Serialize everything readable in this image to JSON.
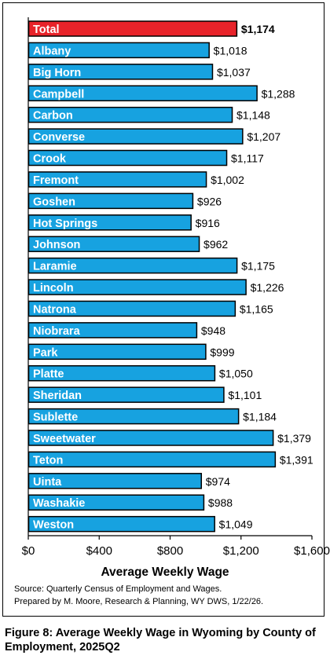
{
  "chart_data": {
    "type": "bar",
    "orientation": "horizontal",
    "categories": [
      "Total",
      "Albany",
      "Big Horn",
      "Campbell",
      "Carbon",
      "Converse",
      "Crook",
      "Fremont",
      "Goshen",
      "Hot Springs",
      "Johnson",
      "Laramie",
      "Lincoln",
      "Natrona",
      "Niobrara",
      "Park",
      "Platte",
      "Sheridan",
      "Sublette",
      "Sweetwater",
      "Teton",
      "Uinta",
      "Washakie",
      "Weston"
    ],
    "values": [
      1174,
      1018,
      1037,
      1288,
      1148,
      1207,
      1117,
      1002,
      926,
      916,
      962,
      1175,
      1226,
      1165,
      948,
      999,
      1050,
      1101,
      1184,
      1379,
      1391,
      974,
      988,
      1049
    ],
    "value_labels": [
      "$1,174",
      "$1,018",
      "$1,037",
      "$1,288",
      "$1,148",
      "$1,207",
      "$1,117",
      "$1,002",
      "$926",
      "$916",
      "$962",
      "$1,175",
      "$1,226",
      "$1,165",
      "$948",
      "$999",
      "$1,050",
      "$1,101",
      "$1,184",
      "$1,379",
      "$1,391",
      "$974",
      "$988",
      "$1,049"
    ],
    "xlabel": "Average Weekly Wage",
    "xlim": [
      0,
      1600
    ],
    "xticks": [
      0,
      400,
      800,
      1200,
      1600
    ],
    "xtick_labels": [
      "$0",
      "$400",
      "$800",
      "$1,200",
      "$1,600"
    ],
    "grid": false,
    "colors": {
      "highlight": "#e8232a",
      "bar": "#17a2e0",
      "outline": "#000000"
    }
  },
  "source": {
    "line1": "Source: Quarterly Census of Employment and Wages.",
    "line2": "Prepared by M. Moore, Research & Planning, WY DWS, 1/22/26."
  },
  "caption": "Figure 8: Average Weekly Wage in Wyoming by County of Employment, 2025Q2"
}
